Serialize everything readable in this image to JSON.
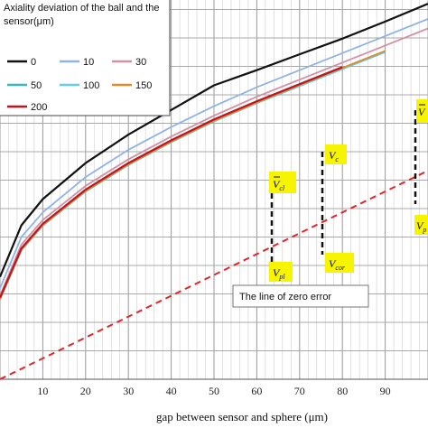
{
  "chart_data": {
    "type": "line",
    "title": "",
    "xlabel": "gap between sensor and sphere (μm)",
    "ylabel": "",
    "xlim": [
      0,
      100
    ],
    "ylim": [
      0,
      100
    ],
    "x_ticks": [
      10,
      20,
      30,
      40,
      50,
      60,
      70,
      80,
      90
    ],
    "grid": true,
    "legend": {
      "title": "Axiality deviation of the ball and the sensor(μm)",
      "placement": "top-left",
      "entries": [
        "0",
        "10",
        "30",
        "50",
        "100",
        "150",
        "200"
      ]
    },
    "series": [
      {
        "name": "0",
        "color": "#111111",
        "x": [
          0,
          5,
          10,
          20,
          30,
          40,
          50,
          60,
          70,
          80,
          90,
          100
        ],
        "y": [
          27,
          40.6,
          47.5,
          57,
          64.5,
          71,
          77.5,
          81.5,
          85.7,
          89.8,
          94.3,
          99
        ]
      },
      {
        "name": "10",
        "color": "#8fb3e6",
        "x": [
          0,
          5,
          10,
          20,
          30,
          40,
          50,
          60,
          70,
          80,
          90,
          100
        ],
        "y": [
          24,
          37.5,
          44,
          53.3,
          60.5,
          66.5,
          72,
          77,
          81.5,
          86,
          90.5,
          95
        ]
      },
      {
        "name": "30",
        "color": "#d58fa3",
        "x": [
          0,
          5,
          10,
          20,
          30,
          40,
          50,
          60,
          70,
          80,
          90,
          100
        ],
        "y": [
          22,
          35.5,
          42,
          51,
          58,
          64,
          69.5,
          74.5,
          79,
          83.5,
          88,
          92.5
        ]
      },
      {
        "name": "50",
        "color": "#39b8b8",
        "x": [
          0,
          5,
          10,
          20,
          30,
          40,
          50,
          60,
          70,
          80,
          90
        ],
        "y": [
          21,
          34,
          40.5,
          49.5,
          56.5,
          62.5,
          68,
          72.8,
          77.3,
          81.8,
          86.3
        ]
      },
      {
        "name": "100",
        "color": "#5fd0e8",
        "x": [
          0,
          5,
          10,
          20,
          30,
          40,
          50,
          60,
          70,
          80,
          90
        ],
        "y": [
          21,
          34,
          40.6,
          49.6,
          56.6,
          62.6,
          68.1,
          72.9,
          77.4,
          81.9,
          86.4
        ]
      },
      {
        "name": "150",
        "color": "#e08a2a",
        "x": [
          0,
          5,
          10,
          20,
          30,
          40,
          50,
          60,
          70,
          80,
          90
        ],
        "y": [
          21.2,
          34.2,
          40.7,
          49.7,
          56.7,
          62.7,
          68.2,
          73,
          77.6,
          82.1,
          86.6
        ]
      },
      {
        "name": "200",
        "color": "#c0151a",
        "x": [
          0,
          5,
          10,
          20,
          30,
          40,
          50,
          60,
          70,
          80
        ],
        "y": [
          21.5,
          34.5,
          41,
          50,
          57,
          63,
          68.5,
          73.3,
          77.8,
          82.3
        ]
      }
    ],
    "reference_line": {
      "label": "The line of zero error",
      "color": "#e0262a",
      "x": [
        0,
        100
      ],
      "y": [
        0,
        55
      ]
    },
    "annotations": [
      {
        "base": "V",
        "sub": "cl",
        "bar": true
      },
      {
        "base": "V",
        "sub": "pl",
        "bar": false
      },
      {
        "base": "V",
        "sub": "c",
        "bar": false
      },
      {
        "base": "V",
        "sub": "cor",
        "bar": false
      },
      {
        "base": "V",
        "sub": "",
        "bar": true
      },
      {
        "base": "V",
        "sub": "p",
        "bar": false
      }
    ]
  }
}
